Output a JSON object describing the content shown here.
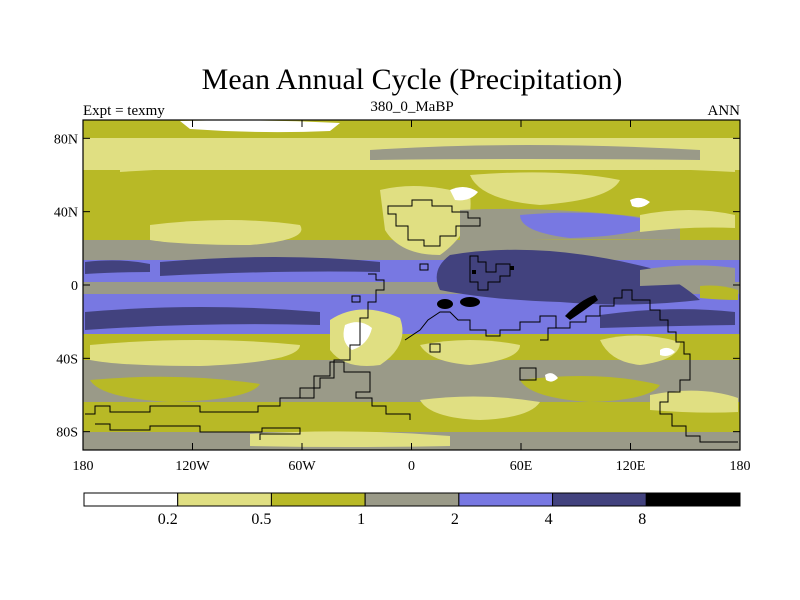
{
  "chart_data": {
    "type": "heatmap",
    "title": "Mean Annual Cycle (Precipitation)",
    "subtitle_left": "Expt = texmy",
    "subtitle_center": "380_0_MaBP",
    "subtitle_right": "ANN",
    "x_range": [
      -180,
      180
    ],
    "y_range": [
      -90,
      90
    ],
    "x_ticks": [
      {
        "value": -180,
        "label": "180"
      },
      {
        "value": -120,
        "label": "120W"
      },
      {
        "value": -60,
        "label": "60W"
      },
      {
        "value": 0,
        "label": "0"
      },
      {
        "value": 60,
        "label": "60E"
      },
      {
        "value": 120,
        "label": "120E"
      },
      {
        "value": 180,
        "label": "180"
      }
    ],
    "y_ticks": [
      {
        "value": 80,
        "label": "80N"
      },
      {
        "value": 40,
        "label": "40N"
      },
      {
        "value": 0,
        "label": "0"
      },
      {
        "value": -40,
        "label": "40S"
      },
      {
        "value": -80,
        "label": "80S"
      }
    ],
    "levels": [
      0.2,
      0.5,
      1,
      2,
      4,
      8
    ],
    "level_labels": [
      "0.2",
      "0.5",
      "1",
      "2",
      "4",
      "8"
    ],
    "colors": [
      "#ffffff",
      "#e0df82",
      "#b8b926",
      "#9a9a88",
      "#7878e2",
      "#42427e",
      "#000000"
    ],
    "colorbar_orientation": "horizontal-bottom"
  }
}
